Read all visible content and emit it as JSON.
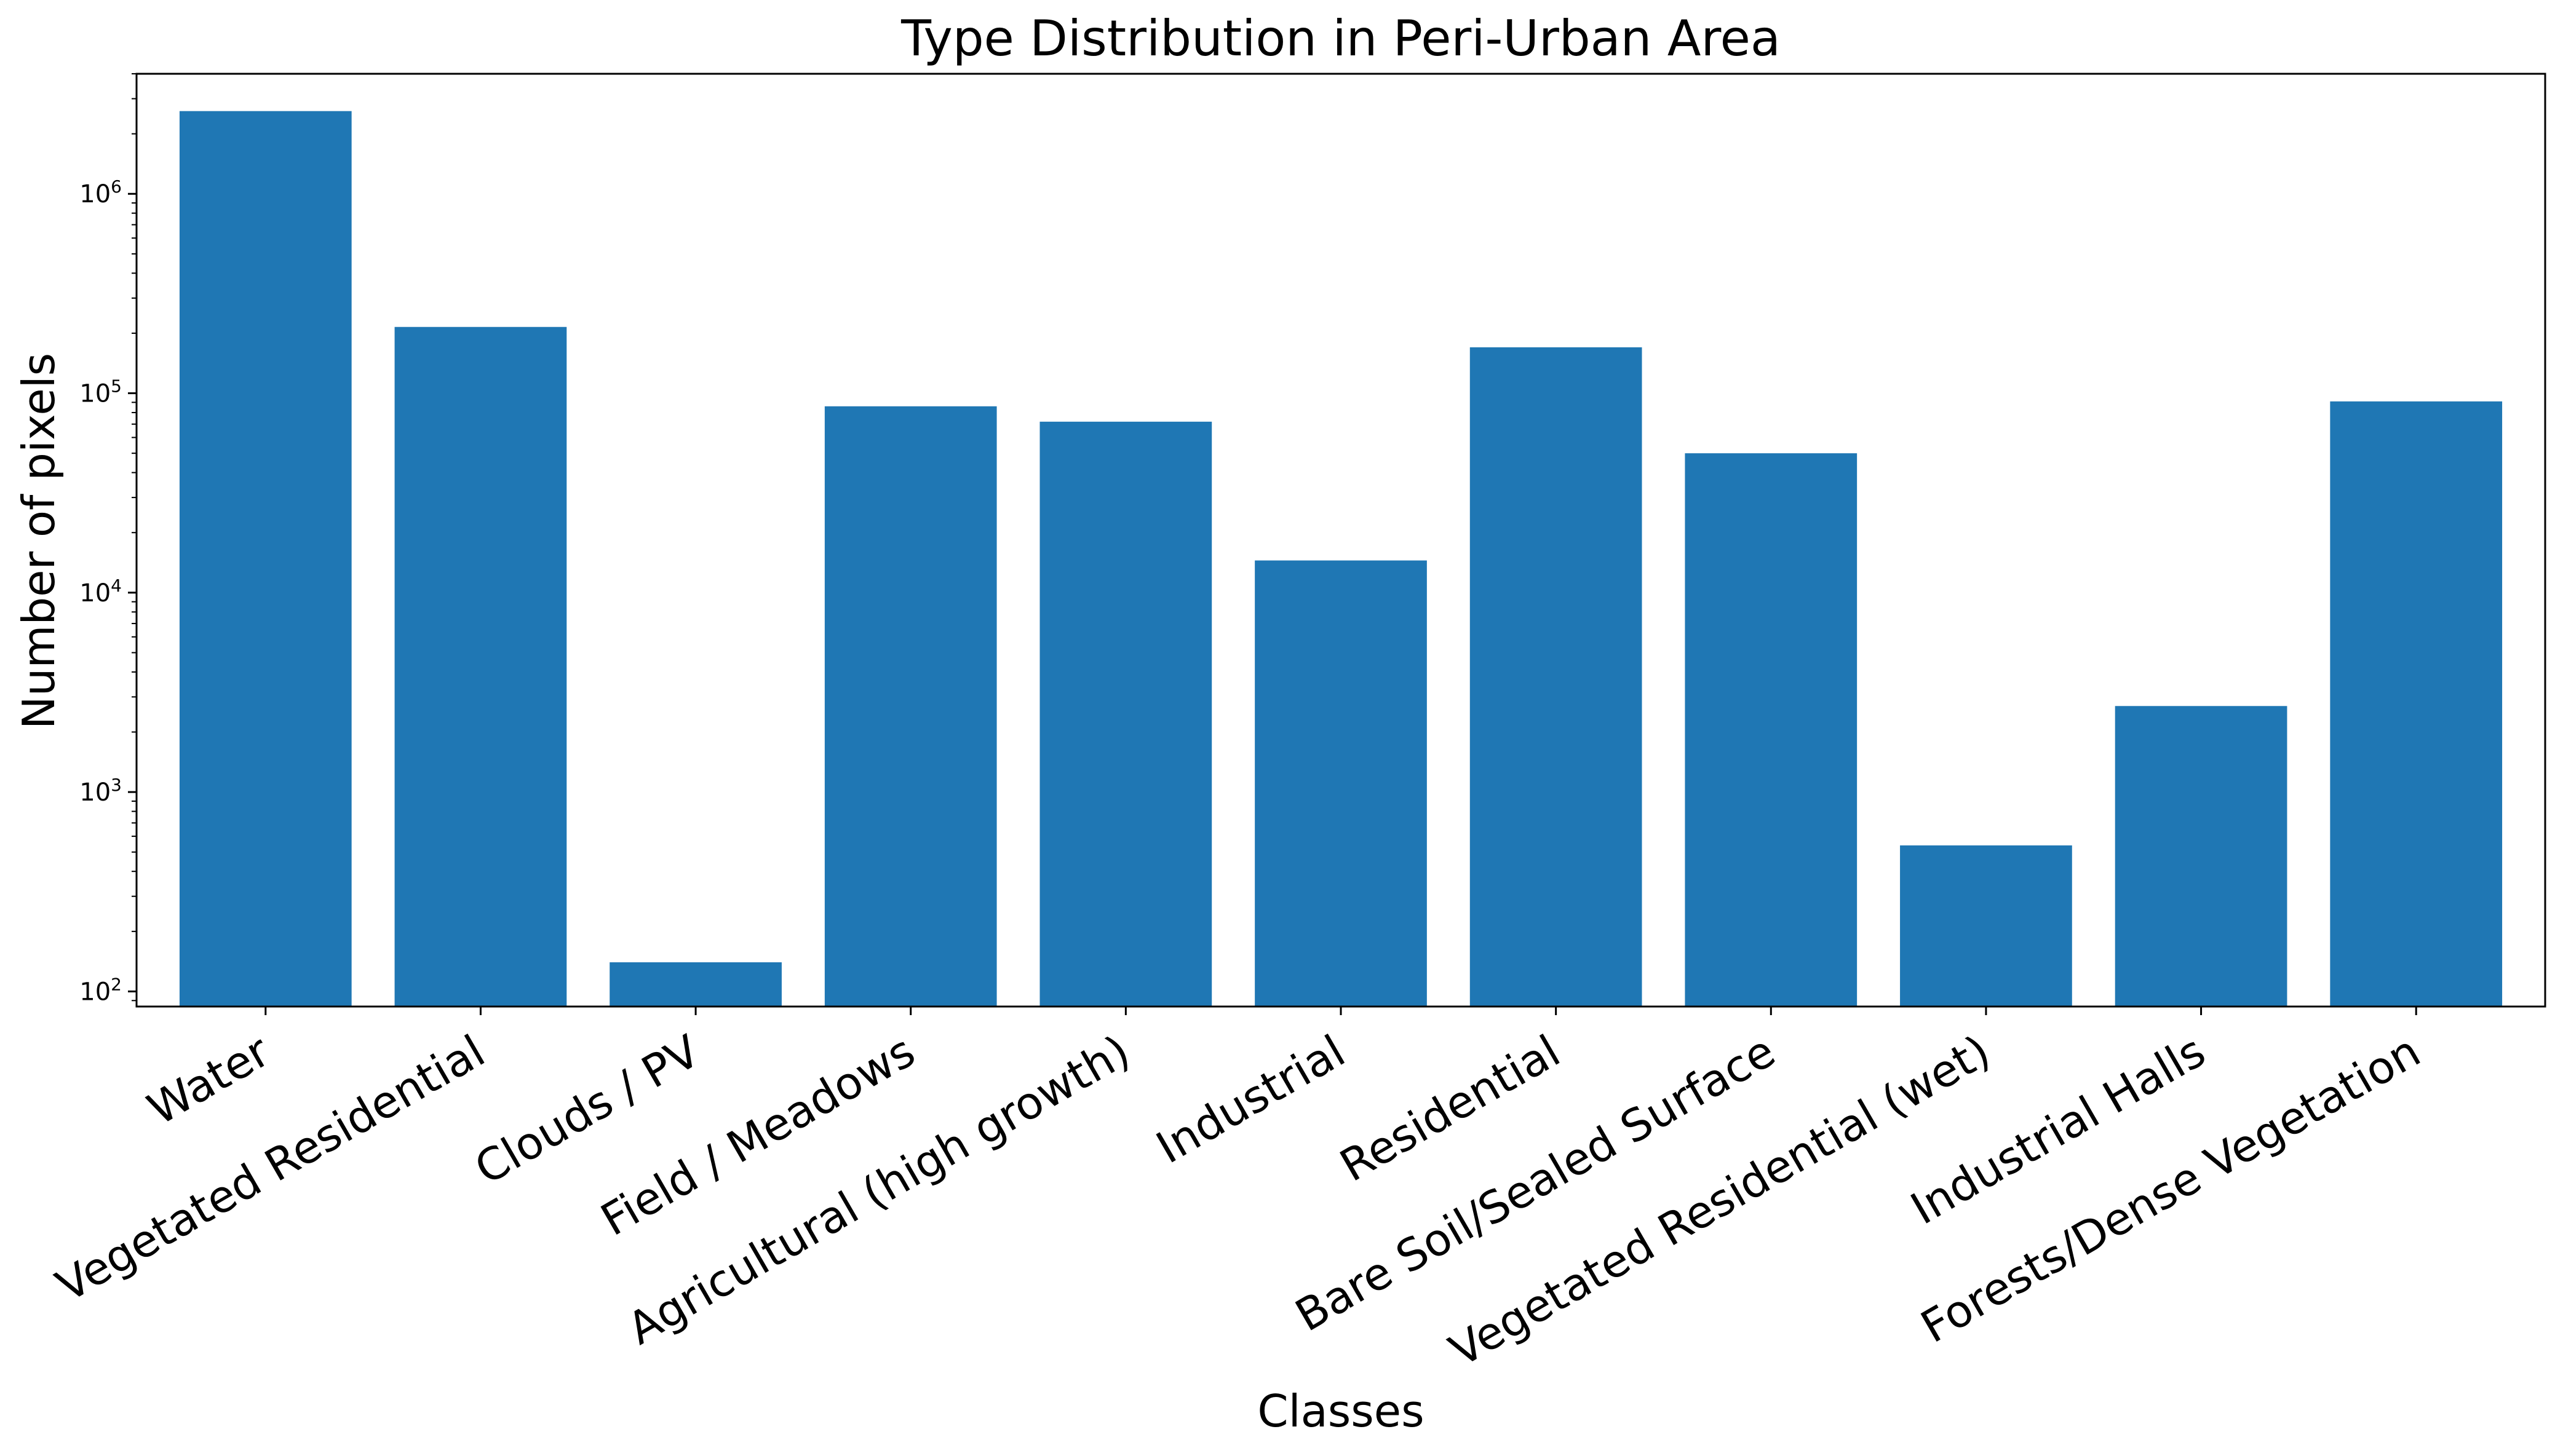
{
  "chart_data": {
    "type": "bar",
    "title": "Type Distribution in Peri-Urban Area",
    "xlabel": "Classes",
    "ylabel": "Number of pixels",
    "yscale": "log",
    "ylim": [
      84,
      4000000
    ],
    "grid": false,
    "legend": "none",
    "bar_color": "#1f77b4",
    "categories": [
      "Water",
      "Vegetated Residential",
      "Clouds / PV",
      "Field / Meadows",
      "Agricultural (high growth)",
      "Industrial",
      "Residential",
      "Bare Soil/Sealed Surface",
      "Vegetated Residential (wet)",
      "Industrial Halls",
      "Forests/Dense Vegetation"
    ],
    "values": [
      2600000,
      215000,
      140,
      86000,
      72000,
      14500,
      170000,
      50000,
      540,
      2700,
      91000
    ],
    "y_ticks": [
      {
        "base": "10",
        "exp": "2",
        "value": 100
      },
      {
        "base": "10",
        "exp": "3",
        "value": 1000
      },
      {
        "base": "10",
        "exp": "4",
        "value": 10000
      },
      {
        "base": "10",
        "exp": "5",
        "value": 100000
      },
      {
        "base": "10",
        "exp": "6",
        "value": 1000000
      }
    ]
  }
}
